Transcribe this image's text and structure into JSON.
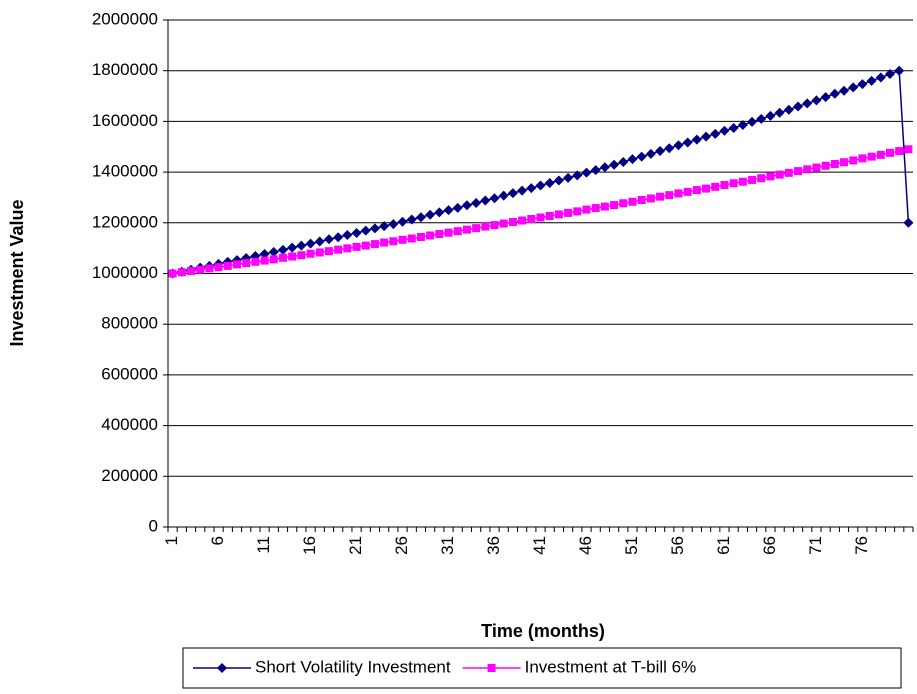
{
  "chart_data": {
    "type": "line",
    "y_label": "Investment Value",
    "x_label": "Time (months)",
    "categories": [
      1,
      null,
      null,
      null,
      null,
      6,
      null,
      null,
      null,
      null,
      11,
      null,
      null,
      null,
      null,
      16,
      null,
      null,
      null,
      null,
      21,
      null,
      null,
      null,
      null,
      26,
      null,
      null,
      null,
      null,
      31,
      null,
      null,
      null,
      null,
      36,
      null,
      null,
      null,
      null,
      41,
      null,
      null,
      null,
      null,
      46,
      null,
      null,
      null,
      null,
      51,
      null,
      null,
      null,
      null,
      56,
      null,
      null,
      null,
      null,
      61,
      null,
      null,
      null,
      null,
      66,
      null,
      null,
      null,
      null,
      71,
      null,
      null,
      null,
      null,
      76,
      null,
      null,
      null,
      null,
      null
    ],
    "series": [
      {
        "name": "Short Volatility Investment",
        "color": "#000080",
        "marker": "diamond",
        "values": [
          1000000,
          1007000,
          1015000,
          1023000,
          1030000,
          1038000,
          1046000,
          1053000,
          1061000,
          1069000,
          1077000,
          1085000,
          1093000,
          1102000,
          1110000,
          1118000,
          1126000,
          1135000,
          1143000,
          1152000,
          1160000,
          1169000,
          1178000,
          1187000,
          1195000,
          1204000,
          1213000,
          1222000,
          1232000,
          1241000,
          1250000,
          1259000,
          1269000,
          1278000,
          1288000,
          1297000,
          1307000,
          1317000,
          1327000,
          1337000,
          1347000,
          1357000,
          1367000,
          1377000,
          1387000,
          1398000,
          1408000,
          1419000,
          1429000,
          1440000,
          1451000,
          1461000,
          1472000,
          1483000,
          1494000,
          1506000,
          1517000,
          1528000,
          1540000,
          1551000,
          1563000,
          1574000,
          1586000,
          1598000,
          1610000,
          1622000,
          1634000,
          1646000,
          1659000,
          1671000,
          1683000,
          1696000,
          1709000,
          1721000,
          1734000,
          1747000,
          1760000,
          1773000,
          1787000,
          1800000,
          1200000
        ]
      },
      {
        "name": "Investment at T-bill 6%",
        "color": "#FF00FF",
        "marker": "square",
        "values": [
          1000000,
          1005000,
          1010000,
          1015000,
          1020000,
          1025000,
          1030000,
          1036000,
          1041000,
          1046000,
          1051000,
          1056000,
          1062000,
          1067000,
          1072000,
          1078000,
          1083000,
          1088000,
          1094000,
          1099000,
          1105000,
          1110000,
          1116000,
          1122000,
          1127000,
          1133000,
          1138000,
          1144000,
          1150000,
          1156000,
          1161000,
          1167000,
          1173000,
          1179000,
          1185000,
          1191000,
          1197000,
          1203000,
          1209000,
          1215000,
          1221000,
          1227000,
          1233000,
          1239000,
          1245000,
          1252000,
          1258000,
          1264000,
          1270000,
          1277000,
          1283000,
          1290000,
          1296000,
          1303000,
          1309000,
          1316000,
          1322000,
          1329000,
          1335000,
          1342000,
          1349000,
          1356000,
          1362000,
          1369000,
          1376000,
          1383000,
          1390000,
          1397000,
          1404000,
          1411000,
          1418000,
          1425000,
          1432000,
          1439000,
          1446000,
          1454000,
          1461000,
          1468000,
          1476000,
          1483000,
          1490000
        ]
      }
    ],
    "ylim": [
      0,
      2000000
    ],
    "yticks": [
      0,
      200000,
      400000,
      600000,
      800000,
      1000000,
      1200000,
      1400000,
      1600000,
      1800000,
      2000000
    ],
    "grid": true,
    "legend": "bottom"
  }
}
